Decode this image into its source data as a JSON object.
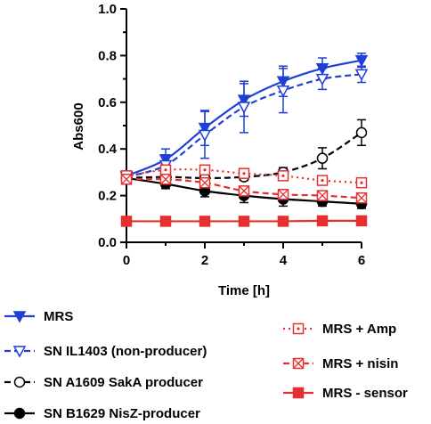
{
  "chart_data": {
    "type": "line",
    "xlabel": "Time [h]",
    "ylabel": "Abs600",
    "xlim": [
      0,
      6
    ],
    "ylim": [
      0,
      1.0
    ],
    "x_ticks": [
      "0",
      "2",
      "4",
      "6"
    ],
    "y_ticks": [
      "0.0",
      "0.2",
      "0.4",
      "0.6",
      "0.8",
      "1.0"
    ],
    "grid": false,
    "legend_placement": "bottom",
    "series": [
      {
        "name": "MRS",
        "color": "#1f3fd6",
        "line": "solid",
        "marker": "triangle-down-filled",
        "x": [
          0,
          1,
          2,
          3,
          4,
          5,
          6
        ],
        "y": [
          0.285,
          0.355,
          0.49,
          0.61,
          0.69,
          0.745,
          0.78
        ],
        "err": [
          0.01,
          0.045,
          0.075,
          0.07,
          0.065,
          0.045,
          0.03
        ]
      },
      {
        "name": "SN IL1403 (non-producer)",
        "color": "#1f3fd6",
        "line": "dashed",
        "marker": "triangle-down-open",
        "x": [
          0,
          1,
          2,
          3,
          4,
          5,
          6
        ],
        "y": [
          0.28,
          0.33,
          0.46,
          0.58,
          0.65,
          0.7,
          0.72
        ],
        "err": [
          0.01,
          0.045,
          0.1,
          0.11,
          0.095,
          0.045,
          0.035
        ]
      },
      {
        "name": "SN A1609 SakA producer",
        "color": "#000000",
        "line": "dashed",
        "marker": "circle-open",
        "x": [
          0,
          1,
          2,
          3,
          4,
          5,
          6
        ],
        "y": [
          0.275,
          0.28,
          0.275,
          0.28,
          0.3,
          0.36,
          0.47
        ],
        "err": [
          0.01,
          0.015,
          0.015,
          0.015,
          0.02,
          0.045,
          0.055
        ]
      },
      {
        "name": "SN B1629 NisZ-producer",
        "color": "#000000",
        "line": "solid",
        "marker": "circle-filled",
        "x": [
          0,
          1,
          2,
          3,
          4,
          5,
          6
        ],
        "y": [
          0.275,
          0.25,
          0.22,
          0.2,
          0.185,
          0.175,
          0.165
        ],
        "err": [
          0.01,
          0.02,
          0.025,
          0.03,
          0.03,
          0.02,
          0.02
        ]
      },
      {
        "name": "MRS + Amp",
        "color": "#e53030",
        "line": "dotted",
        "marker": "square-dot",
        "x": [
          0,
          1,
          2,
          3,
          4,
          5,
          6
        ],
        "y": [
          0.285,
          0.31,
          0.31,
          0.295,
          0.285,
          0.265,
          0.255
        ],
        "err": [
          0.01,
          0.015,
          0.015,
          0.015,
          0.015,
          0.015,
          0.015
        ]
      },
      {
        "name": "MRS + nisin",
        "color": "#e53030",
        "line": "dashed",
        "marker": "square-x",
        "x": [
          0,
          1,
          2,
          3,
          4,
          5,
          6
        ],
        "y": [
          0.27,
          0.27,
          0.255,
          0.22,
          0.205,
          0.2,
          0.19
        ],
        "err": [
          0.01,
          0.015,
          0.015,
          0.02,
          0.015,
          0.015,
          0.015
        ]
      },
      {
        "name": "MRS - sensor",
        "color": "#e53030",
        "line": "solid",
        "marker": "square-filled",
        "x": [
          0,
          1,
          2,
          3,
          4,
          5,
          6
        ],
        "y": [
          0.09,
          0.09,
          0.09,
          0.09,
          0.09,
          0.092,
          0.092
        ],
        "err": [
          0,
          0,
          0,
          0,
          0,
          0,
          0
        ]
      }
    ]
  }
}
